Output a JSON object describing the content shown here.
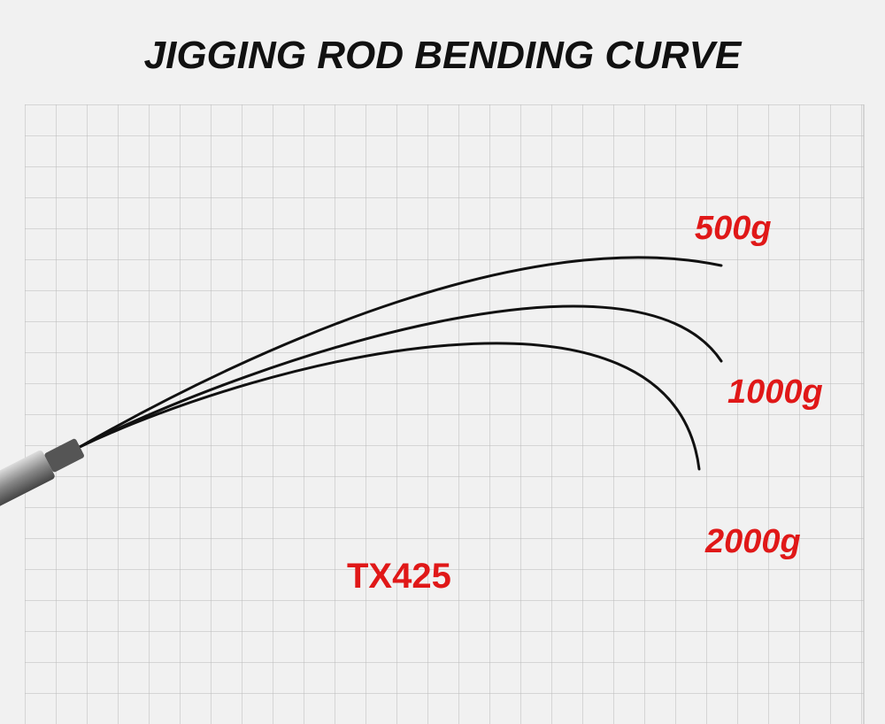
{
  "title": "JIGGING ROD BENDING CURVE",
  "curves": [
    {
      "label": "500g"
    },
    {
      "label": "1000g"
    },
    {
      "label": "2000g"
    }
  ],
  "model": "TX425"
}
